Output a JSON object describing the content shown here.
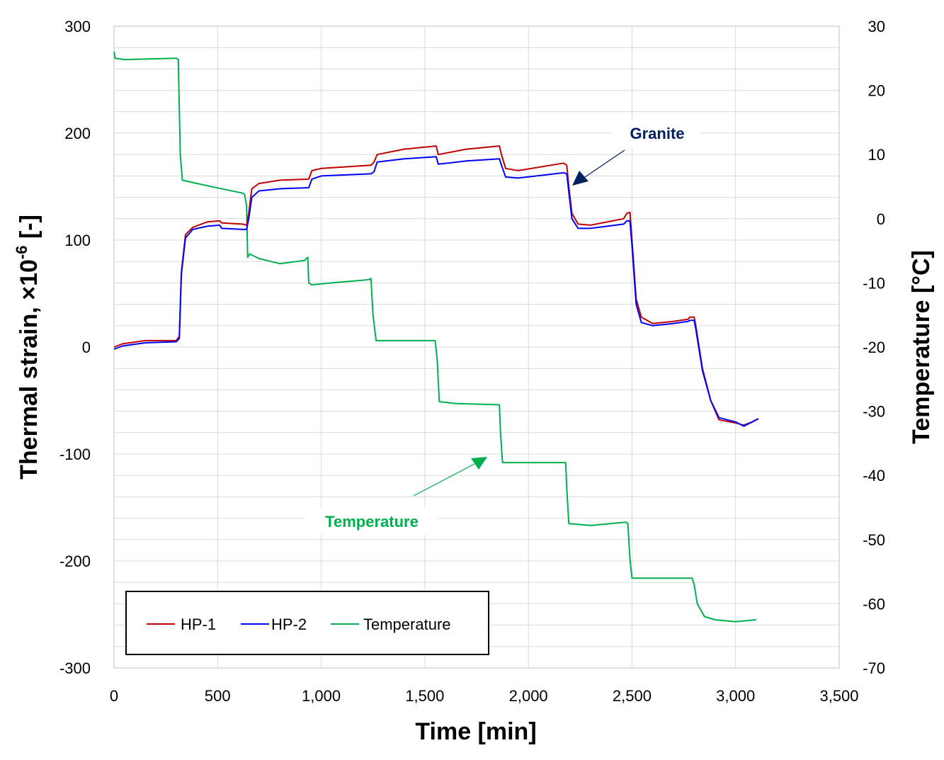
{
  "chart_data": {
    "type": "line",
    "xlabel": "Time [min]",
    "ylabel_main": "Thermal strain, ×10",
    "ylabel_exp": "-6",
    "ylabel_suffix": " [-]",
    "y2label": "Temperature [°C]",
    "xlim": [
      0,
      3500
    ],
    "ylim": [
      -300,
      300
    ],
    "y2lim": [
      -70,
      30
    ],
    "x_ticks": [
      {
        "v": 0,
        "label": "0"
      },
      {
        "v": 500,
        "label": "500"
      },
      {
        "v": 1000,
        "label": "1,000"
      },
      {
        "v": 1500,
        "label": "1,500"
      },
      {
        "v": 2000,
        "label": "2,000"
      },
      {
        "v": 2500,
        "label": "2,500"
      },
      {
        "v": 3000,
        "label": "3,000"
      },
      {
        "v": 3500,
        "label": "3,500"
      }
    ],
    "y_ticks": [
      {
        "v": 300,
        "label": "300"
      },
      {
        "v": 200,
        "label": "200"
      },
      {
        "v": 100,
        "label": "100"
      },
      {
        "v": 0,
        "label": "0"
      },
      {
        "v": -100,
        "label": "-100"
      },
      {
        "v": -200,
        "label": "-200"
      },
      {
        "v": -300,
        "label": "-300"
      }
    ],
    "y2_ticks": [
      {
        "v": 30,
        "label": "30"
      },
      {
        "v": 20,
        "label": "20"
      },
      {
        "v": 10,
        "label": "10"
      },
      {
        "v": 0,
        "label": "0"
      },
      {
        "v": -10,
        "label": "-10"
      },
      {
        "v": -20,
        "label": "-20"
      },
      {
        "v": -30,
        "label": "-30"
      },
      {
        "v": -40,
        "label": "-40"
      },
      {
        "v": -50,
        "label": "-50"
      },
      {
        "v": -60,
        "label": "-60"
      },
      {
        "v": -70,
        "label": "-70"
      }
    ],
    "grid": "on",
    "legend_position": "bottom-left",
    "series": [
      {
        "name": "HP-1",
        "axis": "left",
        "color": "#c00000",
        "points": [
          [
            0,
            0
          ],
          [
            40,
            3
          ],
          [
            150,
            6
          ],
          [
            300,
            6
          ],
          [
            315,
            10
          ],
          [
            325,
            70
          ],
          [
            345,
            105
          ],
          [
            380,
            112
          ],
          [
            450,
            117
          ],
          [
            510,
            118
          ],
          [
            520,
            116
          ],
          [
            620,
            115
          ],
          [
            640,
            114
          ],
          [
            650,
            125
          ],
          [
            665,
            148
          ],
          [
            700,
            153
          ],
          [
            800,
            156
          ],
          [
            940,
            157
          ],
          [
            955,
            165
          ],
          [
            1000,
            167
          ],
          [
            1240,
            170
          ],
          [
            1255,
            173
          ],
          [
            1270,
            180
          ],
          [
            1400,
            185
          ],
          [
            1555,
            188
          ],
          [
            1565,
            180
          ],
          [
            1700,
            185
          ],
          [
            1860,
            188
          ],
          [
            1870,
            180
          ],
          [
            1890,
            167
          ],
          [
            1950,
            165
          ],
          [
            2170,
            172
          ],
          [
            2185,
            170
          ],
          [
            2195,
            150
          ],
          [
            2210,
            125
          ],
          [
            2240,
            115
          ],
          [
            2300,
            114
          ],
          [
            2460,
            120
          ],
          [
            2475,
            125
          ],
          [
            2490,
            126
          ],
          [
            2500,
            100
          ],
          [
            2520,
            45
          ],
          [
            2545,
            28
          ],
          [
            2600,
            22
          ],
          [
            2700,
            24
          ],
          [
            2770,
            26
          ],
          [
            2780,
            28
          ],
          [
            2800,
            28
          ],
          [
            2808,
            20
          ],
          [
            2840,
            -20
          ],
          [
            2880,
            -50
          ],
          [
            2920,
            -68
          ],
          [
            3000,
            -71
          ],
          [
            3040,
            -73
          ],
          [
            3080,
            -70
          ],
          [
            3110,
            -67
          ]
        ]
      },
      {
        "name": "HP-2",
        "axis": "left",
        "color": "#0000ff",
        "points": [
          [
            0,
            -2
          ],
          [
            40,
            1
          ],
          [
            150,
            4
          ],
          [
            300,
            5
          ],
          [
            315,
            8
          ],
          [
            325,
            68
          ],
          [
            345,
            102
          ],
          [
            380,
            110
          ],
          [
            450,
            113
          ],
          [
            510,
            114
          ],
          [
            520,
            111
          ],
          [
            620,
            110
          ],
          [
            640,
            110
          ],
          [
            650,
            120
          ],
          [
            665,
            140
          ],
          [
            700,
            146
          ],
          [
            800,
            148
          ],
          [
            940,
            149
          ],
          [
            955,
            157
          ],
          [
            1000,
            160
          ],
          [
            1240,
            162
          ],
          [
            1255,
            164
          ],
          [
            1270,
            173
          ],
          [
            1400,
            176
          ],
          [
            1555,
            178
          ],
          [
            1565,
            171
          ],
          [
            1700,
            174
          ],
          [
            1860,
            176
          ],
          [
            1870,
            170
          ],
          [
            1890,
            159
          ],
          [
            1950,
            158
          ],
          [
            2170,
            163
          ],
          [
            2185,
            162
          ],
          [
            2195,
            145
          ],
          [
            2210,
            120
          ],
          [
            2240,
            111
          ],
          [
            2300,
            111
          ],
          [
            2460,
            115
          ],
          [
            2475,
            118
          ],
          [
            2490,
            118
          ],
          [
            2500,
            95
          ],
          [
            2520,
            40
          ],
          [
            2545,
            23
          ],
          [
            2600,
            20
          ],
          [
            2700,
            22
          ],
          [
            2770,
            24
          ],
          [
            2780,
            25
          ],
          [
            2800,
            25
          ],
          [
            2808,
            17
          ],
          [
            2840,
            -22
          ],
          [
            2880,
            -50
          ],
          [
            2920,
            -66
          ],
          [
            3000,
            -70
          ],
          [
            3040,
            -74
          ],
          [
            3080,
            -70
          ],
          [
            3110,
            -67
          ]
        ]
      },
      {
        "name": "Temperature",
        "axis": "right",
        "color": "#00b050",
        "points": [
          [
            0,
            26
          ],
          [
            5,
            25
          ],
          [
            50,
            24.8
          ],
          [
            300,
            25
          ],
          [
            310,
            24.8
          ],
          [
            320,
            10
          ],
          [
            330,
            6
          ],
          [
            400,
            5.5
          ],
          [
            500,
            4.8
          ],
          [
            620,
            4
          ],
          [
            630,
            3.8
          ],
          [
            640,
            2
          ],
          [
            645,
            -6
          ],
          [
            655,
            -5.5
          ],
          [
            700,
            -6.2
          ],
          [
            800,
            -7
          ],
          [
            920,
            -6.5
          ],
          [
            935,
            -6
          ],
          [
            940,
            -10
          ],
          [
            955,
            -10.3
          ],
          [
            1050,
            -10
          ],
          [
            1230,
            -9.5
          ],
          [
            1240,
            -9.3
          ],
          [
            1250,
            -15
          ],
          [
            1265,
            -19
          ],
          [
            1400,
            -19
          ],
          [
            1550,
            -19
          ],
          [
            1560,
            -22
          ],
          [
            1570,
            -28.5
          ],
          [
            1650,
            -28.8
          ],
          [
            1860,
            -29
          ],
          [
            1865,
            -33
          ],
          [
            1875,
            -38
          ],
          [
            2000,
            -38
          ],
          [
            2180,
            -38
          ],
          [
            2185,
            -42
          ],
          [
            2195,
            -47.5
          ],
          [
            2300,
            -47.8
          ],
          [
            2470,
            -47.3
          ],
          [
            2480,
            -47.5
          ],
          [
            2490,
            -53
          ],
          [
            2500,
            -56
          ],
          [
            2600,
            -56
          ],
          [
            2790,
            -56
          ],
          [
            2800,
            -57
          ],
          [
            2815,
            -60
          ],
          [
            2850,
            -62
          ],
          [
            2900,
            -62.5
          ],
          [
            3000,
            -62.8
          ],
          [
            3100,
            -62.5
          ]
        ]
      }
    ],
    "annotations": [
      {
        "text": "Granite",
        "color": "#002060"
      },
      {
        "text": "Temperature",
        "color": "#00b050"
      }
    ]
  }
}
